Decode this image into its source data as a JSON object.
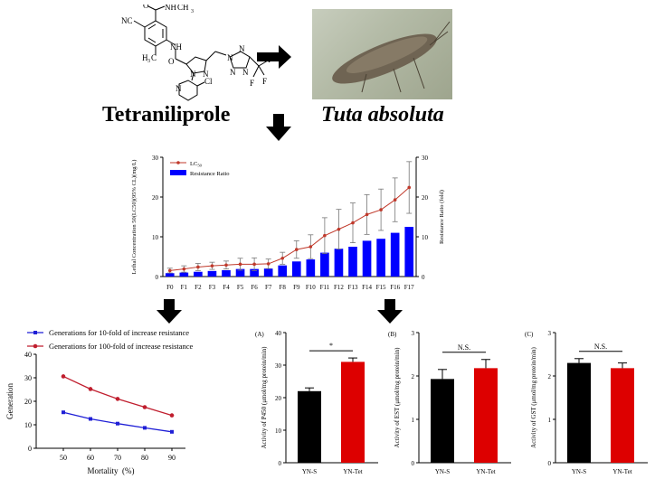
{
  "top": {
    "compound_name": "Tetraniliprole",
    "insect_name": "Tuta absoluta",
    "structure_labels": [
      "NC",
      "O",
      "NH",
      "CH",
      "NH",
      "O",
      "N",
      "N",
      "N",
      "N",
      "N",
      "N",
      "N",
      "Cl",
      "H",
      "C",
      "F",
      "F",
      "F",
      "3",
      "3"
    ]
  },
  "chart_data": [
    {
      "type": "bar+line",
      "categories": [
        "F0",
        "F1",
        "F2",
        "F3",
        "F4",
        "F5",
        "F6",
        "F7",
        "F8",
        "F9",
        "F10",
        "F11",
        "F12",
        "F13",
        "F14",
        "F15",
        "F16",
        "F17"
      ],
      "series": [
        {
          "name": "LC50",
          "kind": "line",
          "color": "#c0392b",
          "values": [
            1.5,
            1.9,
            2.4,
            2.7,
            2.9,
            3.1,
            3.1,
            3.2,
            4.6,
            6.8,
            7.5,
            10.3,
            11.9,
            13.5,
            15.6,
            16.8,
            19.3,
            22.4
          ],
          "err": [
            0.6,
            0.8,
            0.9,
            0.9,
            1.0,
            1.5,
            1.6,
            1.2,
            1.5,
            2.2,
            3.0,
            4.5,
            5.0,
            5.0,
            5.0,
            5.2,
            5.5,
            6.5
          ]
        },
        {
          "name": "Resistance Ratio",
          "kind": "bar",
          "color": "#0000ff",
          "values": [
            0.85,
            1.0,
            1.2,
            1.4,
            1.6,
            1.9,
            1.9,
            2.0,
            2.8,
            3.8,
            4.3,
            6.0,
            7.0,
            7.5,
            9.0,
            9.5,
            11.0,
            12.5
          ]
        }
      ],
      "ylabel_left": "Lethal Concentration 50(LC50)(95% CL)(mg/L)",
      "ylabel_right": "Resistance Ratio (fold)",
      "ylim_left": [
        0,
        30
      ],
      "ylim_right": [
        0,
        30
      ],
      "yticks_left": [
        "0",
        "10",
        "20",
        "30"
      ],
      "yticks_right": [
        "0",
        "10",
        "20",
        "30"
      ],
      "legend": [
        "LC50",
        "Resistance Ratio"
      ],
      "legend_sub": "50"
    },
    {
      "type": "line",
      "x": [
        50,
        60,
        70,
        80,
        90
      ],
      "series": [
        {
          "name": "Generations for 10-fold of increase resistance",
          "color": "#1f1fd6",
          "values": [
            15.3,
            12.5,
            10.5,
            8.7,
            7.0
          ]
        },
        {
          "name": "Generations for 100-fold of increase resistance",
          "color": "#c01e2e",
          "values": [
            30.6,
            25.2,
            21.0,
            17.5,
            14.0
          ]
        }
      ],
      "xlabel": "Mortality  (%)",
      "ylabel": "Generation",
      "xticks": [
        "50",
        "60",
        "70",
        "80",
        "90"
      ],
      "yticks": [
        "0",
        "10",
        "20",
        "30",
        "40"
      ],
      "ylim": [
        0,
        40
      ],
      "xlim": [
        40,
        95
      ]
    },
    {
      "type": "bar",
      "panel": "(A)",
      "categories": [
        "YN-S",
        "YN-Tet"
      ],
      "values": [
        22,
        31
      ],
      "err": [
        1.0,
        1.2
      ],
      "colors": [
        "#000000",
        "#dd0000"
      ],
      "ylabel": "Activity of P450 (μmol/mg protein/min)",
      "ylim": [
        0,
        40
      ],
      "yticks": [
        "0",
        "10",
        "20",
        "30",
        "40"
      ],
      "sig": "*"
    },
    {
      "type": "bar",
      "panel": "(B)",
      "categories": [
        "YN-S",
        "YN-Tet"
      ],
      "values": [
        1.93,
        2.18
      ],
      "err": [
        0.22,
        0.2
      ],
      "colors": [
        "#000000",
        "#dd0000"
      ],
      "ylabel": "Activity of EST (μmol/mg protein/min)",
      "ylim": [
        0,
        3
      ],
      "yticks": [
        "0",
        "1",
        "2",
        "3"
      ],
      "sig": "N.S."
    },
    {
      "type": "bar",
      "panel": "(C)",
      "categories": [
        "YN-S",
        "YN-Tet"
      ],
      "values": [
        2.3,
        2.18
      ],
      "err": [
        0.1,
        0.12
      ],
      "colors": [
        "#000000",
        "#dd0000"
      ],
      "ylabel": "Activity of GST (μmol/mg protein/min)",
      "ylim": [
        0,
        3
      ],
      "yticks": [
        "0",
        "1",
        "2",
        "3"
      ],
      "sig": "N.S."
    }
  ]
}
